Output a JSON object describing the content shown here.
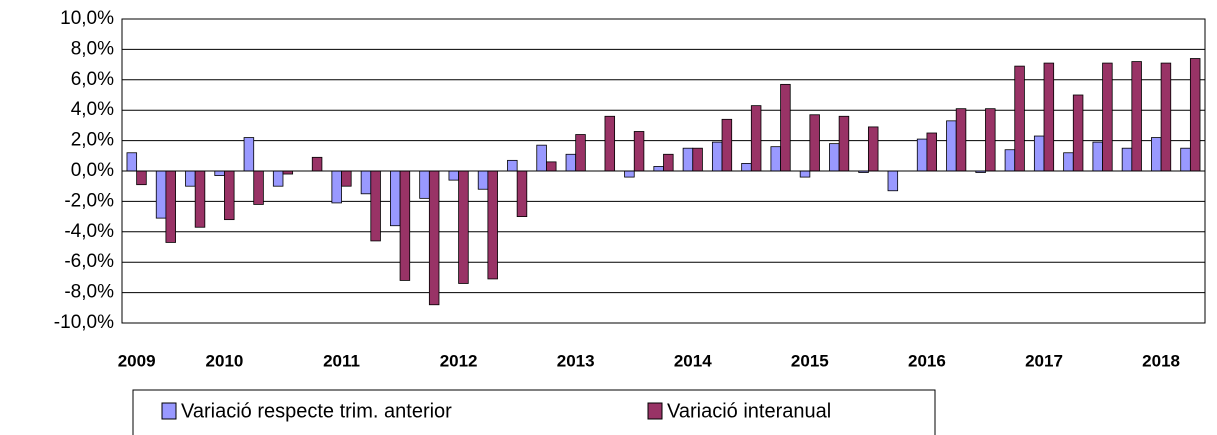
{
  "chart_data": {
    "type": "bar",
    "categories": [
      "2009",
      null,
      null,
      "2010",
      null,
      null,
      null,
      "2011",
      null,
      null,
      null,
      "2012",
      null,
      null,
      null,
      "2013",
      null,
      null,
      null,
      "2014",
      null,
      null,
      null,
      "2015",
      null,
      null,
      null,
      "2016",
      null,
      null,
      null,
      "2017",
      null,
      null,
      null,
      "2018",
      null
    ],
    "series": [
      {
        "name": "Variació respecte trim. anterior",
        "color": "#9999ff",
        "values": [
          1.2,
          -3.1,
          -1.0,
          -0.3,
          2.2,
          -1.0,
          0.0,
          -2.1,
          -1.5,
          -3.6,
          -1.8,
          -0.6,
          -1.2,
          0.7,
          1.7,
          1.1,
          0.0,
          -0.4,
          0.3,
          1.5,
          1.9,
          0.5,
          1.6,
          -0.4,
          1.8,
          -0.1,
          -1.3,
          2.1,
          3.3,
          -0.1,
          1.4,
          2.3,
          1.2,
          1.9,
          1.5,
          2.2,
          1.5
        ]
      },
      {
        "name": "Variació interanual",
        "color": "#993366",
        "values": [
          -0.9,
          -4.7,
          -3.7,
          -3.2,
          -2.2,
          -0.2,
          0.9,
          -1.0,
          -4.6,
          -7.2,
          -8.8,
          -7.4,
          -7.1,
          -3.0,
          0.6,
          2.4,
          3.6,
          2.6,
          1.1,
          1.5,
          3.4,
          4.3,
          5.7,
          3.7,
          3.6,
          2.9,
          0.0,
          2.5,
          4.1,
          4.1,
          6.9,
          7.1,
          5.0,
          7.1,
          7.2,
          7.1,
          7.4
        ]
      }
    ],
    "ylim": [
      -10,
      10
    ],
    "yticks": [
      {
        "value": -10,
        "label": "-10,0%"
      },
      {
        "value": -8,
        "label": "-8,0%"
      },
      {
        "value": -6,
        "label": "-6,0%"
      },
      {
        "value": -4,
        "label": "-4,0%"
      },
      {
        "value": -2,
        "label": "-2,0%"
      },
      {
        "value": 0,
        "label": "0,0%"
      },
      {
        "value": 2,
        "label": "2,0%"
      },
      {
        "value": 4,
        "label": "4,0%"
      },
      {
        "value": 6,
        "label": "6,0%"
      },
      {
        "value": 8,
        "label": "8,0%"
      },
      {
        "value": 10,
        "label": "10,0%"
      }
    ],
    "grid": true,
    "legend": "bottom"
  }
}
